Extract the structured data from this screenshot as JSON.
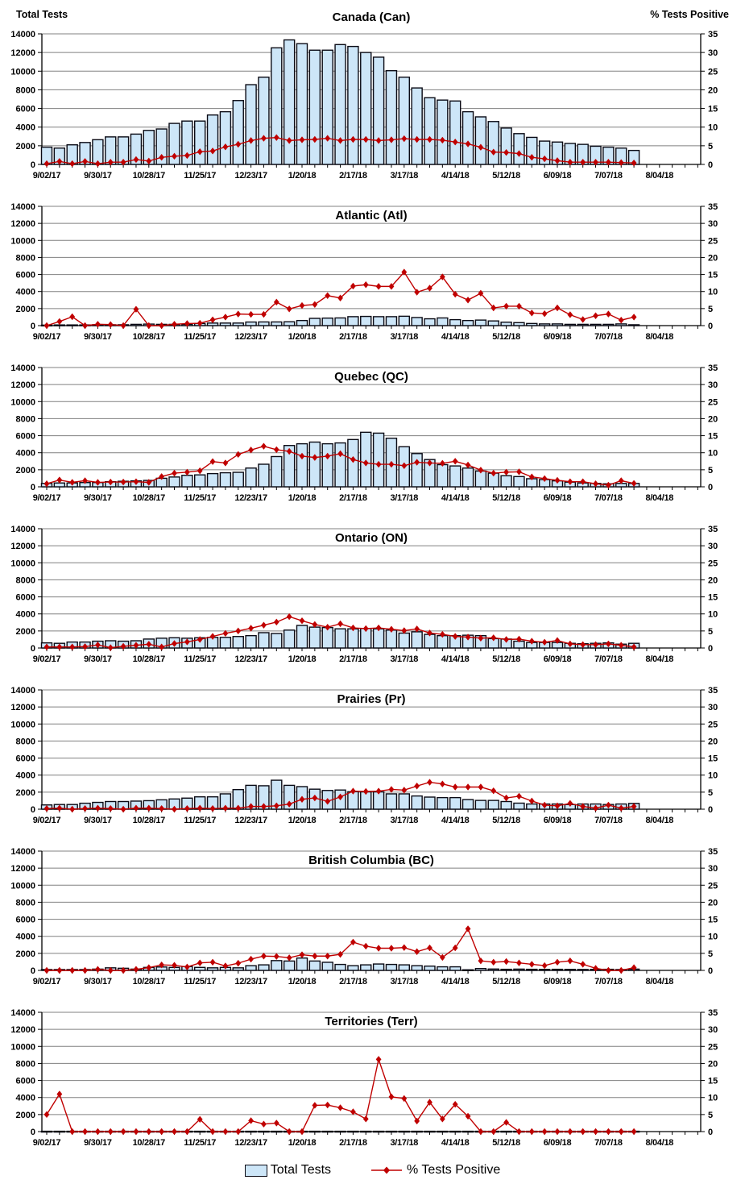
{
  "chart_data": {
    "type": "bar+line multi-panel",
    "panel_count": 7,
    "categories": [
      "9/02/17",
      "9/09/17",
      "9/16/17",
      "9/23/17",
      "9/30/17",
      "10/07/17",
      "10/14/17",
      "10/21/17",
      "10/28/17",
      "11/04/17",
      "11/11/17",
      "11/18/17",
      "11/25/17",
      "12/02/17",
      "12/09/17",
      "12/16/17",
      "12/23/17",
      "12/30/17",
      "1/06/18",
      "1/13/18",
      "1/20/18",
      "1/27/18",
      "2/03/18",
      "2/10/18",
      "2/17/18",
      "2/24/18",
      "3/03/18",
      "3/10/18",
      "3/17/18",
      "3/24/18",
      "3/31/18",
      "4/07/18",
      "4/14/18",
      "4/21/18",
      "4/28/18",
      "5/05/18",
      "5/12/18",
      "5/19/18",
      "5/26/18",
      "6/02/18",
      "6/09/18",
      "6/16/18",
      "6/23/18",
      "6/30/18",
      "7/07/18",
      "7/14/18",
      "7/21/18"
    ],
    "x_tick_labels": [
      "9/02/17",
      "9/30/17",
      "10/28/17",
      "11/25/17",
      "12/23/17",
      "1/20/18",
      "2/17/18",
      "3/17/18",
      "4/14/18",
      "5/12/18",
      "6/09/18",
      "7/07/18",
      "8/04/18"
    ],
    "left_axis": {
      "title": "Total Tests",
      "lim": [
        0,
        14000
      ],
      "ticks": [
        0,
        2000,
        4000,
        6000,
        8000,
        10000,
        12000,
        14000
      ]
    },
    "right_axis": {
      "title": "% Tests Positive",
      "lim": [
        0,
        35
      ],
      "ticks": [
        0,
        5,
        10,
        15,
        20,
        25,
        30,
        35
      ]
    },
    "grid": "horizontal",
    "colors": {
      "bar_fill": "#CDE6F8",
      "bar_border": "#0a0a14",
      "line": "#C00000",
      "grid": "#808080",
      "axis": "#000000"
    },
    "legend": {
      "items": [
        {
          "label": "Total Tests",
          "swatch": "bar"
        },
        {
          "label": "% Tests Positive",
          "swatch": "line-diamond"
        }
      ]
    },
    "panels": [
      {
        "id": "can",
        "title": "Canada (Can)",
        "bars": [
          1850,
          1750,
          2100,
          2350,
          2650,
          2950,
          2950,
          3250,
          3650,
          3800,
          4400,
          4650,
          4650,
          5300,
          5650,
          6850,
          8550,
          9350,
          12500,
          13350,
          12950,
          12250,
          12250,
          12850,
          12650,
          12000,
          11500,
          10050,
          9350,
          8200,
          7150,
          6900,
          6800,
          5650,
          5100,
          4600,
          3900,
          3300,
          2900,
          2500,
          2400,
          2250,
          2150,
          1950,
          1850,
          1750,
          1500
        ],
        "line": [
          0.2,
          0.8,
          0.2,
          0.8,
          0.2,
          0.6,
          0.6,
          1.3,
          0.9,
          1.9,
          2.2,
          2.4,
          3.4,
          3.6,
          4.7,
          5.4,
          6.4,
          7.0,
          7.2,
          6.4,
          6.6,
          6.7,
          7.0,
          6.4,
          6.7,
          6.7,
          6.4,
          6.6,
          6.9,
          6.7,
          6.7,
          6.5,
          6.0,
          5.5,
          4.6,
          3.3,
          3.2,
          2.9,
          1.9,
          1.5,
          1.0,
          0.6,
          0.6,
          0.6,
          0.6,
          0.5,
          0.4
        ]
      },
      {
        "id": "atl",
        "title": "Atlantic (Atl)",
        "bars": [
          60,
          80,
          80,
          80,
          100,
          100,
          100,
          150,
          180,
          150,
          150,
          150,
          250,
          300,
          300,
          300,
          420,
          430,
          430,
          450,
          600,
          850,
          880,
          900,
          1050,
          1080,
          1050,
          1050,
          1100,
          950,
          800,
          900,
          700,
          600,
          650,
          550,
          400,
          350,
          250,
          200,
          200,
          150,
          150,
          150,
          150,
          200,
          100
        ],
        "line": [
          0,
          1.2,
          2.6,
          0,
          0.4,
          0.3,
          0,
          4.8,
          0,
          0,
          0.4,
          0.6,
          0.7,
          1.7,
          2.5,
          3.4,
          3.3,
          3.3,
          6.9,
          4.9,
          5.9,
          6.2,
          8.8,
          8.1,
          11.6,
          12.0,
          11.5,
          11.5,
          15.7,
          9.8,
          11.0,
          14.3,
          9.2,
          7.5,
          9.5,
          5.2,
          5.7,
          5.7,
          3.7,
          3.5,
          5.2,
          3.2,
          1.8,
          2.9,
          3.4,
          1.6,
          2.5
        ]
      },
      {
        "id": "qc",
        "title": "Quebec (QC)",
        "bars": [
          400,
          450,
          450,
          500,
          500,
          600,
          650,
          700,
          750,
          1000,
          1150,
          1350,
          1400,
          1550,
          1650,
          1700,
          2200,
          2650,
          3550,
          4850,
          5050,
          5250,
          5050,
          5150,
          5550,
          6400,
          6300,
          5700,
          4700,
          3900,
          3200,
          2600,
          2450,
          2200,
          1850,
          1600,
          1300,
          1200,
          950,
          850,
          700,
          550,
          450,
          400,
          350,
          400,
          400
        ],
        "line": [
          0.9,
          2.0,
          1.3,
          1.8,
          1.3,
          1.4,
          1.4,
          1.5,
          1.3,
          3.0,
          4.0,
          4.3,
          4.7,
          7.4,
          7.0,
          9.5,
          10.8,
          11.9,
          10.9,
          10.4,
          9.0,
          8.6,
          9.0,
          9.7,
          8.0,
          7.0,
          6.6,
          6.6,
          6.2,
          7.2,
          7.0,
          6.9,
          7.5,
          6.4,
          4.9,
          4.0,
          4.3,
          4.4,
          2.9,
          2.4,
          1.9,
          1.5,
          1.5,
          0.9,
          0.5,
          1.8,
          1.0
        ]
      },
      {
        "id": "on",
        "title": "Ontario (ON)",
        "bars": [
          600,
          550,
          700,
          700,
          800,
          850,
          800,
          850,
          1050,
          1150,
          1200,
          1150,
          1200,
          1250,
          1250,
          1350,
          1450,
          1800,
          1700,
          2100,
          2650,
          2450,
          2400,
          2250,
          2250,
          2300,
          2250,
          2100,
          1750,
          1900,
          1600,
          1450,
          1450,
          1500,
          1450,
          1100,
          1050,
          800,
          650,
          650,
          650,
          550,
          500,
          550,
          600,
          450,
          550
        ],
        "line": [
          0.3,
          0.3,
          0.3,
          0.4,
          0.9,
          0.1,
          0.5,
          0.8,
          1.1,
          0.3,
          1.3,
          1.8,
          2.5,
          3.4,
          4.3,
          5.0,
          5.8,
          6.7,
          7.6,
          9.2,
          8.0,
          6.9,
          6.1,
          7.1,
          5.9,
          5.7,
          5.9,
          5.5,
          5.1,
          5.6,
          4.4,
          4.0,
          3.4,
          3.2,
          2.9,
          3.0,
          2.5,
          2.6,
          2.0,
          1.7,
          2.2,
          1.2,
          1.0,
          1.0,
          1.2,
          0.8,
          0.3
        ]
      },
      {
        "id": "pr",
        "title": "Prairies (Pr)",
        "bars": [
          500,
          550,
          550,
          700,
          800,
          900,
          900,
          950,
          1000,
          1100,
          1200,
          1300,
          1450,
          1450,
          1800,
          2300,
          2800,
          2750,
          3400,
          2800,
          2650,
          2350,
          2200,
          2250,
          2050,
          2030,
          2030,
          1800,
          1800,
          1550,
          1420,
          1360,
          1360,
          1130,
          1030,
          1030,
          900,
          710,
          610,
          610,
          610,
          550,
          610,
          610,
          550,
          610,
          680
        ],
        "line": [
          0.2,
          0.3,
          0.0,
          0.2,
          0.3,
          0.2,
          0.0,
          0.3,
          0.3,
          0.2,
          0.0,
          0.2,
          0.3,
          0.2,
          0.3,
          0.3,
          0.8,
          0.8,
          1.0,
          1.5,
          2.9,
          3.3,
          2.3,
          3.6,
          5.3,
          5.2,
          5.3,
          5.8,
          5.6,
          6.8,
          7.9,
          7.4,
          6.5,
          6.5,
          6.5,
          5.4,
          3.3,
          3.8,
          2.4,
          1.2,
          1.0,
          1.7,
          0.8,
          0.3,
          1.2,
          0.3,
          0.8
        ]
      },
      {
        "id": "bc",
        "title": "British Columbia (BC)",
        "bars": [
          100,
          100,
          100,
          100,
          150,
          300,
          250,
          150,
          350,
          400,
          350,
          450,
          350,
          300,
          350,
          300,
          550,
          650,
          1150,
          1100,
          1450,
          1100,
          950,
          700,
          550,
          650,
          750,
          700,
          650,
          550,
          500,
          420,
          420,
          70,
          220,
          160,
          130,
          150,
          130,
          120,
          130,
          120,
          110,
          120,
          130,
          100,
          150
        ],
        "line": [
          0,
          0,
          0,
          0,
          0.3,
          0,
          0,
          0.3,
          0.8,
          1.6,
          1.5,
          1.0,
          2.2,
          2.4,
          1.3,
          2.1,
          3.3,
          4.2,
          4.1,
          3.7,
          4.6,
          4.2,
          4.2,
          4.7,
          8.3,
          7.1,
          6.5,
          6.5,
          6.7,
          5.5,
          6.6,
          3.8,
          6.6,
          12.2,
          2.8,
          2.4,
          2.6,
          2.2,
          1.8,
          1.4,
          2.4,
          2.8,
          1.8,
          0.6,
          0,
          0,
          0.8
        ]
      },
      {
        "id": "terr",
        "title": "Territories (Terr)",
        "bars": [
          40,
          40,
          40,
          40,
          40,
          40,
          40,
          40,
          40,
          40,
          40,
          40,
          40,
          40,
          40,
          40,
          40,
          40,
          40,
          40,
          40,
          40,
          40,
          40,
          40,
          40,
          40,
          40,
          40,
          40,
          40,
          40,
          40,
          40,
          40,
          40,
          40,
          40,
          40,
          40,
          40,
          40,
          40,
          40,
          40,
          40,
          40
        ],
        "line": [
          5.0,
          11.0,
          0,
          0,
          0,
          0,
          0,
          0,
          0,
          0,
          0,
          0,
          3.6,
          0,
          0,
          0,
          3.2,
          2.2,
          2.5,
          0,
          0,
          7.7,
          7.8,
          7.0,
          5.8,
          3.7,
          21.2,
          10.2,
          9.7,
          3.1,
          8.6,
          3.7,
          8.0,
          4.5,
          0,
          0,
          2.7,
          0,
          0,
          0,
          0,
          0,
          0,
          0,
          0,
          0,
          0
        ]
      }
    ]
  }
}
